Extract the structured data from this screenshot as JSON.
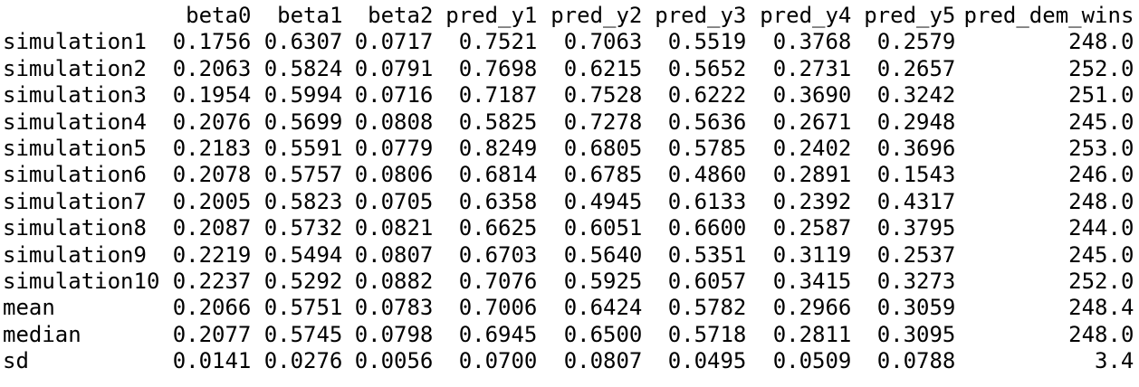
{
  "table": {
    "columns": [
      "beta0",
      "beta1",
      "beta2",
      "pred_y1",
      "pred_y2",
      "pred_y3",
      "pred_y4",
      "pred_y5",
      "pred_dem_wins"
    ],
    "rows": [
      {
        "name": "simulation1",
        "values": [
          "0.1756",
          "0.6307",
          "0.0717",
          "0.7521",
          "0.7063",
          "0.5519",
          "0.3768",
          "0.2579",
          "248.0"
        ]
      },
      {
        "name": "simulation2",
        "values": [
          "0.2063",
          "0.5824",
          "0.0791",
          "0.7698",
          "0.6215",
          "0.5652",
          "0.2731",
          "0.2657",
          "252.0"
        ]
      },
      {
        "name": "simulation3",
        "values": [
          "0.1954",
          "0.5994",
          "0.0716",
          "0.7187",
          "0.7528",
          "0.6222",
          "0.3690",
          "0.3242",
          "251.0"
        ]
      },
      {
        "name": "simulation4",
        "values": [
          "0.2076",
          "0.5699",
          "0.0808",
          "0.5825",
          "0.7278",
          "0.5636",
          "0.2671",
          "0.2948",
          "245.0"
        ]
      },
      {
        "name": "simulation5",
        "values": [
          "0.2183",
          "0.5591",
          "0.0779",
          "0.8249",
          "0.6805",
          "0.5785",
          "0.2402",
          "0.3696",
          "253.0"
        ]
      },
      {
        "name": "simulation6",
        "values": [
          "0.2078",
          "0.5757",
          "0.0806",
          "0.6814",
          "0.6785",
          "0.4860",
          "0.2891",
          "0.1543",
          "246.0"
        ]
      },
      {
        "name": "simulation7",
        "values": [
          "0.2005",
          "0.5823",
          "0.0705",
          "0.6358",
          "0.4945",
          "0.6133",
          "0.2392",
          "0.4317",
          "248.0"
        ]
      },
      {
        "name": "simulation8",
        "values": [
          "0.2087",
          "0.5732",
          "0.0821",
          "0.6625",
          "0.6051",
          "0.6600",
          "0.2587",
          "0.3795",
          "244.0"
        ]
      },
      {
        "name": "simulation9",
        "values": [
          "0.2219",
          "0.5494",
          "0.0807",
          "0.6703",
          "0.5640",
          "0.5351",
          "0.3119",
          "0.2537",
          "245.0"
        ]
      },
      {
        "name": "simulation10",
        "values": [
          "0.2237",
          "0.5292",
          "0.0882",
          "0.7076",
          "0.5925",
          "0.6057",
          "0.3415",
          "0.3273",
          "252.0"
        ]
      },
      {
        "name": "mean",
        "values": [
          "0.2066",
          "0.5751",
          "0.0783",
          "0.7006",
          "0.6424",
          "0.5782",
          "0.2966",
          "0.3059",
          "248.4"
        ]
      },
      {
        "name": "median",
        "values": [
          "0.2077",
          "0.5745",
          "0.0798",
          "0.6945",
          "0.6500",
          "0.5718",
          "0.2811",
          "0.3095",
          "248.0"
        ]
      },
      {
        "name": "sd",
        "values": [
          "0.0141",
          "0.0276",
          "0.0056",
          "0.0700",
          "0.0807",
          "0.0495",
          "0.0509",
          "0.0788",
          "3.4"
        ]
      }
    ]
  }
}
